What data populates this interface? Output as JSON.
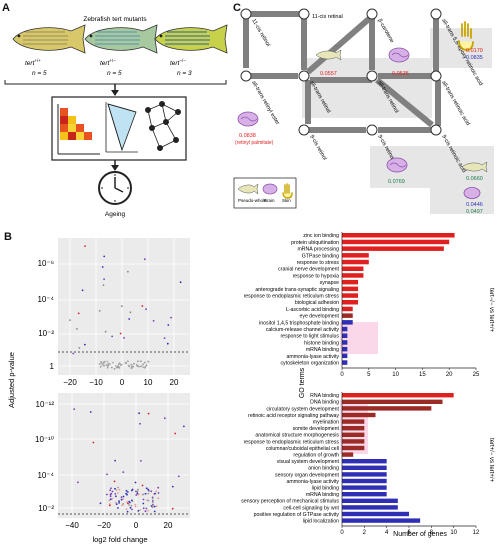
{
  "panel_letters": {
    "a": "A",
    "b": "B",
    "c": "C"
  },
  "panel_a": {
    "title": "Zebrafish tert mutants",
    "genotypes": [
      {
        "label": "tert+/+",
        "base": "tert",
        "sup": "+/+",
        "n": "n = 5",
        "color": "#d8c86a"
      },
      {
        "label": "tert+/−",
        "base": "tert",
        "sup": "+/−",
        "n": "n = 5",
        "color": "#6fb0b8"
      },
      {
        "label": "tert−/−",
        "base": "tert",
        "sup": "−/−",
        "n": "n = 3",
        "color": "#3f86c8"
      }
    ],
    "bracket_label": "Ageing",
    "bottom_label": "Ageing"
  },
  "panel_c": {
    "nodes": [
      {
        "id": "11cis_retinol",
        "label": "11-cis retinol"
      },
      {
        "id": "11cis_retinal",
        "label": "11-cis retinal"
      },
      {
        "id": "bcarotene",
        "label": "β-carotene"
      },
      {
        "id": "at_retinoic",
        "label": "all-trans 5,6-epoxy retinoic acid"
      },
      {
        "id": "at_retinyl_ester",
        "label": "all-trans retinyl ester"
      },
      {
        "id": "at_retinal",
        "label": "all-trans retinal"
      },
      {
        "id": "at_retinol",
        "label": "all-trans retinol"
      },
      {
        "id": "at_retinoic_acid",
        "label": "all-trans retinoic acid"
      },
      {
        "id": "9cis_retinol",
        "label": "9-cis retinol"
      },
      {
        "id": "9cis_retinal",
        "label": "9-cis retinal"
      },
      {
        "id": "9cis_retinoic",
        "label": "9-cis retinoic acid"
      }
    ],
    "values": {
      "v1": "0.0557",
      "v2": "0.0535",
      "v3a": "0.0170",
      "v3b": "0.0835",
      "v4": "0.0838",
      "v4b": "(retinyl palmitate)",
      "v5": "0.0769",
      "v6": "0.0660",
      "v7a": "0.0446",
      "v7b": "0.0497"
    },
    "legend": {
      "pseudo": "Pseudo-whole",
      "brain": "Brain",
      "skin": "Skin"
    }
  },
  "panel_b": {
    "volcano": {
      "ylabel": "Adjusted p-value",
      "xlabel": "log2 fold change",
      "top_yticks": [
        "10⁻⁶",
        "10⁻⁴",
        "10⁻²",
        "1"
      ],
      "top_xticks": [
        "−20",
        "−10",
        "0",
        "10",
        "20"
      ],
      "bottom_yticks": [
        "10⁻¹²",
        "10⁻¹⁰",
        "10⁻⁸",
        "10⁻⁶",
        "10⁻⁴",
        "10⁻²"
      ],
      "bottom_xticks": [
        "−40",
        "−20",
        "0",
        "20"
      ]
    },
    "go_ylabel": "GO terms",
    "go_xlabel": "Number of genes",
    "comparison_top": "tert−/− vs tert+/+",
    "comparison_bottom": "tert+/− vs tert+/+"
  },
  "chart_data": [
    {
      "type": "bar",
      "orientation": "horizontal",
      "xlabel": "",
      "ylabel": "GO terms",
      "xlim": [
        0,
        25
      ],
      "xticks": [
        "0",
        "5",
        "10",
        "15",
        "20",
        "25"
      ],
      "categories": [
        "zinc ion binding",
        "protein ubiquitination",
        "mRNA processing",
        "GTPase binding",
        "response to stress",
        "cranial nerve development",
        "response to hypoxia",
        "synapse",
        "anterograde trans-synaptic signaling",
        "response to endoplasmic reticulum stress",
        "biological adhesion",
        "L-ascorbic acid binding",
        "eye development",
        "inositol 1,4,5 trisphosphate binding",
        "calcium-release channel activity",
        "response to light stimulus",
        "histone binding",
        "mRNA binding",
        "ammonia-lyase activity",
        "cytoskeleton organization"
      ],
      "values": [
        21,
        20,
        19,
        5,
        5,
        4,
        4,
        3,
        3,
        3,
        3,
        2,
        2,
        2,
        1,
        1,
        1,
        1,
        1,
        1
      ],
      "colors": [
        "#e01f1f",
        "#e01f1f",
        "#e01f1f",
        "#e01f1f",
        "#e01f1f",
        "#e01f1f",
        "#e01f1f",
        "#e01f1f",
        "#e01f1f",
        "#e01f1f",
        "#e01f1f",
        "#e01f1f",
        "#9b2b25",
        "#2f2fb6",
        "#2f2fb6",
        "#2f2fb6",
        "#2f2fb6",
        "#2f2fb6",
        "#2f2fb6",
        "#2f2fb6"
      ]
    },
    {
      "type": "bar",
      "orientation": "horizontal",
      "xlabel": "Number of genes",
      "ylabel": "GO terms",
      "xlim": [
        0,
        12
      ],
      "xticks": [
        "0",
        "2",
        "4",
        "6",
        "8",
        "10",
        "12"
      ],
      "categories": [
        "RNA binding",
        "DNA binding",
        "circulatory system development",
        "retinoic acid receptor signaling pathway",
        "myelination",
        "somite development",
        "anatomical structure morphogenesis",
        "response to endoplasmic reticulum stress",
        "columnar/cuboidal epithelial cell",
        "regulation of growth",
        "visual system development",
        "anion binding",
        "sensory organ development",
        "ammonia-lyase activity",
        "lipid binding",
        "mRNA binding",
        "sensory perception of mechanical stimulus",
        "cell-cell signaling by wnt",
        "positive regulation of GTPase activity",
        "lipid localization"
      ],
      "values": [
        10,
        9,
        8,
        3,
        2,
        2,
        2,
        2,
        2,
        1,
        4,
        4,
        4,
        4,
        4,
        4,
        5,
        5,
        6,
        7
      ],
      "colors": [
        "#e01f1f",
        "#9b2b25",
        "#9b2b25",
        "#9b2b25",
        "#9b2b25",
        "#9b2b25",
        "#9b2b25",
        "#9b2b25",
        "#9b2b25",
        "#9b2b25",
        "#2f2fb6",
        "#2f2fb6",
        "#2f2fb6",
        "#2f2fb6",
        "#2f2fb6",
        "#2f2fb6",
        "#2f2fb6",
        "#2f2fb6",
        "#2f2fb6",
        "#2f2fb6"
      ]
    }
  ]
}
